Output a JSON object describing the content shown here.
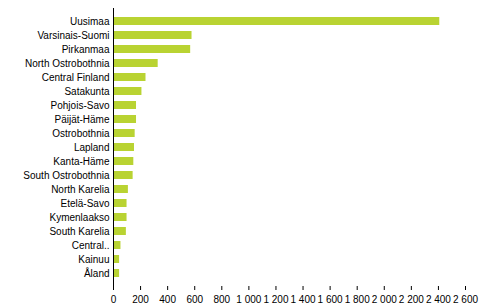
{
  "chart_data": {
    "type": "bar",
    "orientation": "horizontal",
    "categories": [
      "Uusimaa",
      "Varsinais-Suomi",
      "Pirkanmaa",
      "North Ostrobothnia",
      "Central Finland",
      "Satakunta",
      "Pohjois-Savo",
      "Päijät-Häme",
      "Ostrobothnia",
      "Lapland",
      "Kanta-Häme",
      "South Ostrobothnia",
      "North Karelia",
      "Etelä-Savo",
      "Kymenlaakso",
      "South Karelia",
      "Central..",
      "Kainuu",
      "Åland"
    ],
    "values": [
      2410,
      580,
      570,
      330,
      240,
      210,
      170,
      170,
      160,
      155,
      150,
      145,
      110,
      100,
      100,
      95,
      55,
      45,
      45
    ],
    "color": "#b9d332",
    "xlim": [
      0,
      2600
    ],
    "xticks": [
      0,
      200,
      400,
      600,
      800,
      {
        "value": 1000,
        "label": "1 000"
      },
      {
        "value": 1200,
        "label": "1 200"
      },
      {
        "value": 1400,
        "label": "1 400"
      },
      {
        "value": 1600,
        "label": "1 600"
      },
      {
        "value": 1800,
        "label": "1 800"
      },
      {
        "value": 2000,
        "label": "2 000"
      },
      {
        "value": 2200,
        "label": "2 200"
      },
      {
        "value": 2400,
        "label": "2 400"
      },
      {
        "value": 2600,
        "label": "2 600"
      }
    ],
    "grid": false
  }
}
